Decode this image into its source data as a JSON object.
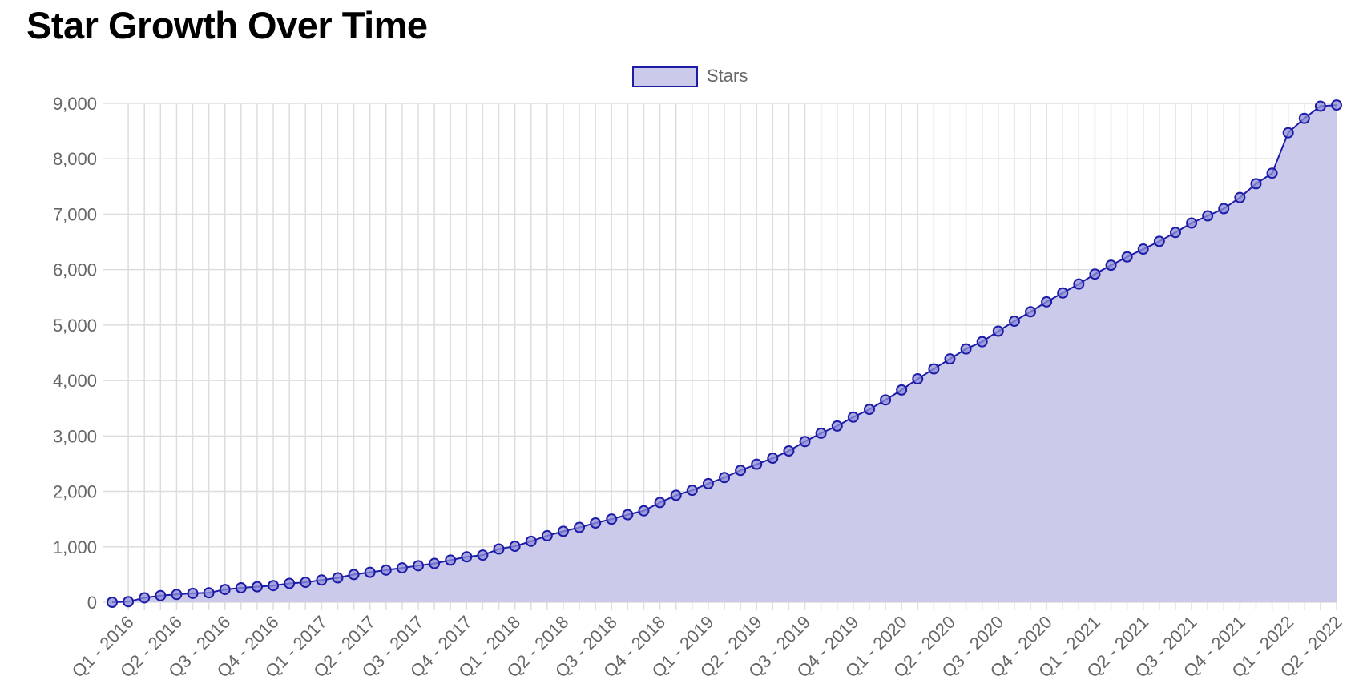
{
  "page": {
    "title": "Star Growth Over Time"
  },
  "colors": {
    "line": "#1c1ca8",
    "fill": "#cccaea",
    "point_fill": "#8e8cd6",
    "grid": "#dddddd",
    "text": "#666666"
  },
  "chart_data": {
    "type": "area",
    "title": "Star Growth Over Time",
    "xlabel": "",
    "ylabel": "",
    "ylim": [
      0,
      9000
    ],
    "y_ticks": [
      "0",
      "1,000",
      "2,000",
      "3,000",
      "4,000",
      "5,000",
      "6,000",
      "7,000",
      "8,000",
      "9,000"
    ],
    "x_tick_labels": [
      "Q1 - 2016",
      "Q2 - 2016",
      "Q3 - 2016",
      "Q4 - 2016",
      "Q1 - 2017",
      "Q2 - 2017",
      "Q3 - 2017",
      "Q4 - 2017",
      "Q1 - 2018",
      "Q2 - 2018",
      "Q3 - 2018",
      "Q4 - 2018",
      "Q1 - 2019",
      "Q2 - 2019",
      "Q3 - 2019",
      "Q4 - 2019",
      "Q1 - 2020",
      "Q2 - 2020",
      "Q3 - 2020",
      "Q4 - 2020",
      "Q1 - 2021",
      "Q2 - 2021",
      "Q3 - 2021",
      "Q4 - 2021",
      "Q1 - 2022",
      "Q2 - 2022"
    ],
    "grid": true,
    "legend_position": "top-center",
    "series": [
      {
        "name": "Stars",
        "values": [
          0,
          10,
          80,
          120,
          140,
          160,
          170,
          230,
          260,
          280,
          300,
          340,
          360,
          400,
          440,
          500,
          540,
          580,
          620,
          660,
          700,
          760,
          820,
          850,
          960,
          1010,
          1100,
          1200,
          1280,
          1350,
          1430,
          1500,
          1580,
          1650,
          1800,
          1930,
          2020,
          2140,
          2250,
          2380,
          2490,
          2600,
          2730,
          2900,
          3050,
          3180,
          3340,
          3480,
          3650,
          3830,
          4030,
          4210,
          4390,
          4570,
          4700,
          4890,
          5070,
          5240,
          5420,
          5580,
          5740,
          5920,
          6080,
          6230,
          6370,
          6510,
          6670,
          6840,
          6970,
          7100,
          7300,
          7550,
          7740,
          8470,
          8730,
          8950,
          8970
        ]
      }
    ]
  }
}
